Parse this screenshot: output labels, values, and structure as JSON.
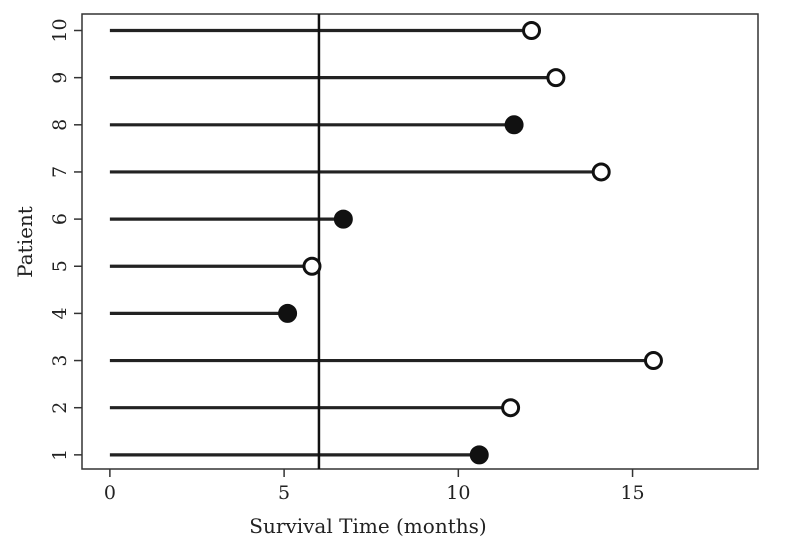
{
  "chart_data": {
    "type": "scatter",
    "xlabel": "Survival Time (months)",
    "ylabel": "Patient",
    "xlim": [
      -0.8,
      18.6
    ],
    "ylim": [
      0.7,
      10.35
    ],
    "x_ticks": [
      0,
      5,
      10,
      15
    ],
    "y_ticks": [
      1,
      2,
      3,
      4,
      5,
      6,
      7,
      8,
      9,
      10
    ],
    "reference_line_x": 6,
    "legend": "none",
    "grid": false,
    "series": [
      {
        "patients": [
          1,
          2,
          3,
          4,
          5,
          6,
          7,
          8,
          9,
          10
        ],
        "survival_time": [
          10.6,
          11.5,
          15.6,
          5.1,
          5.8,
          6.7,
          14.1,
          11.6,
          12.8,
          12.1
        ],
        "event": [
          "death",
          "censored",
          "censored",
          "death",
          "censored",
          "death",
          "censored",
          "death",
          "censored",
          "censored"
        ]
      }
    ],
    "colors": {
      "line": "#222222",
      "marker_fill_death": "#111111",
      "marker_fill_censored": "#ffffff"
    }
  }
}
